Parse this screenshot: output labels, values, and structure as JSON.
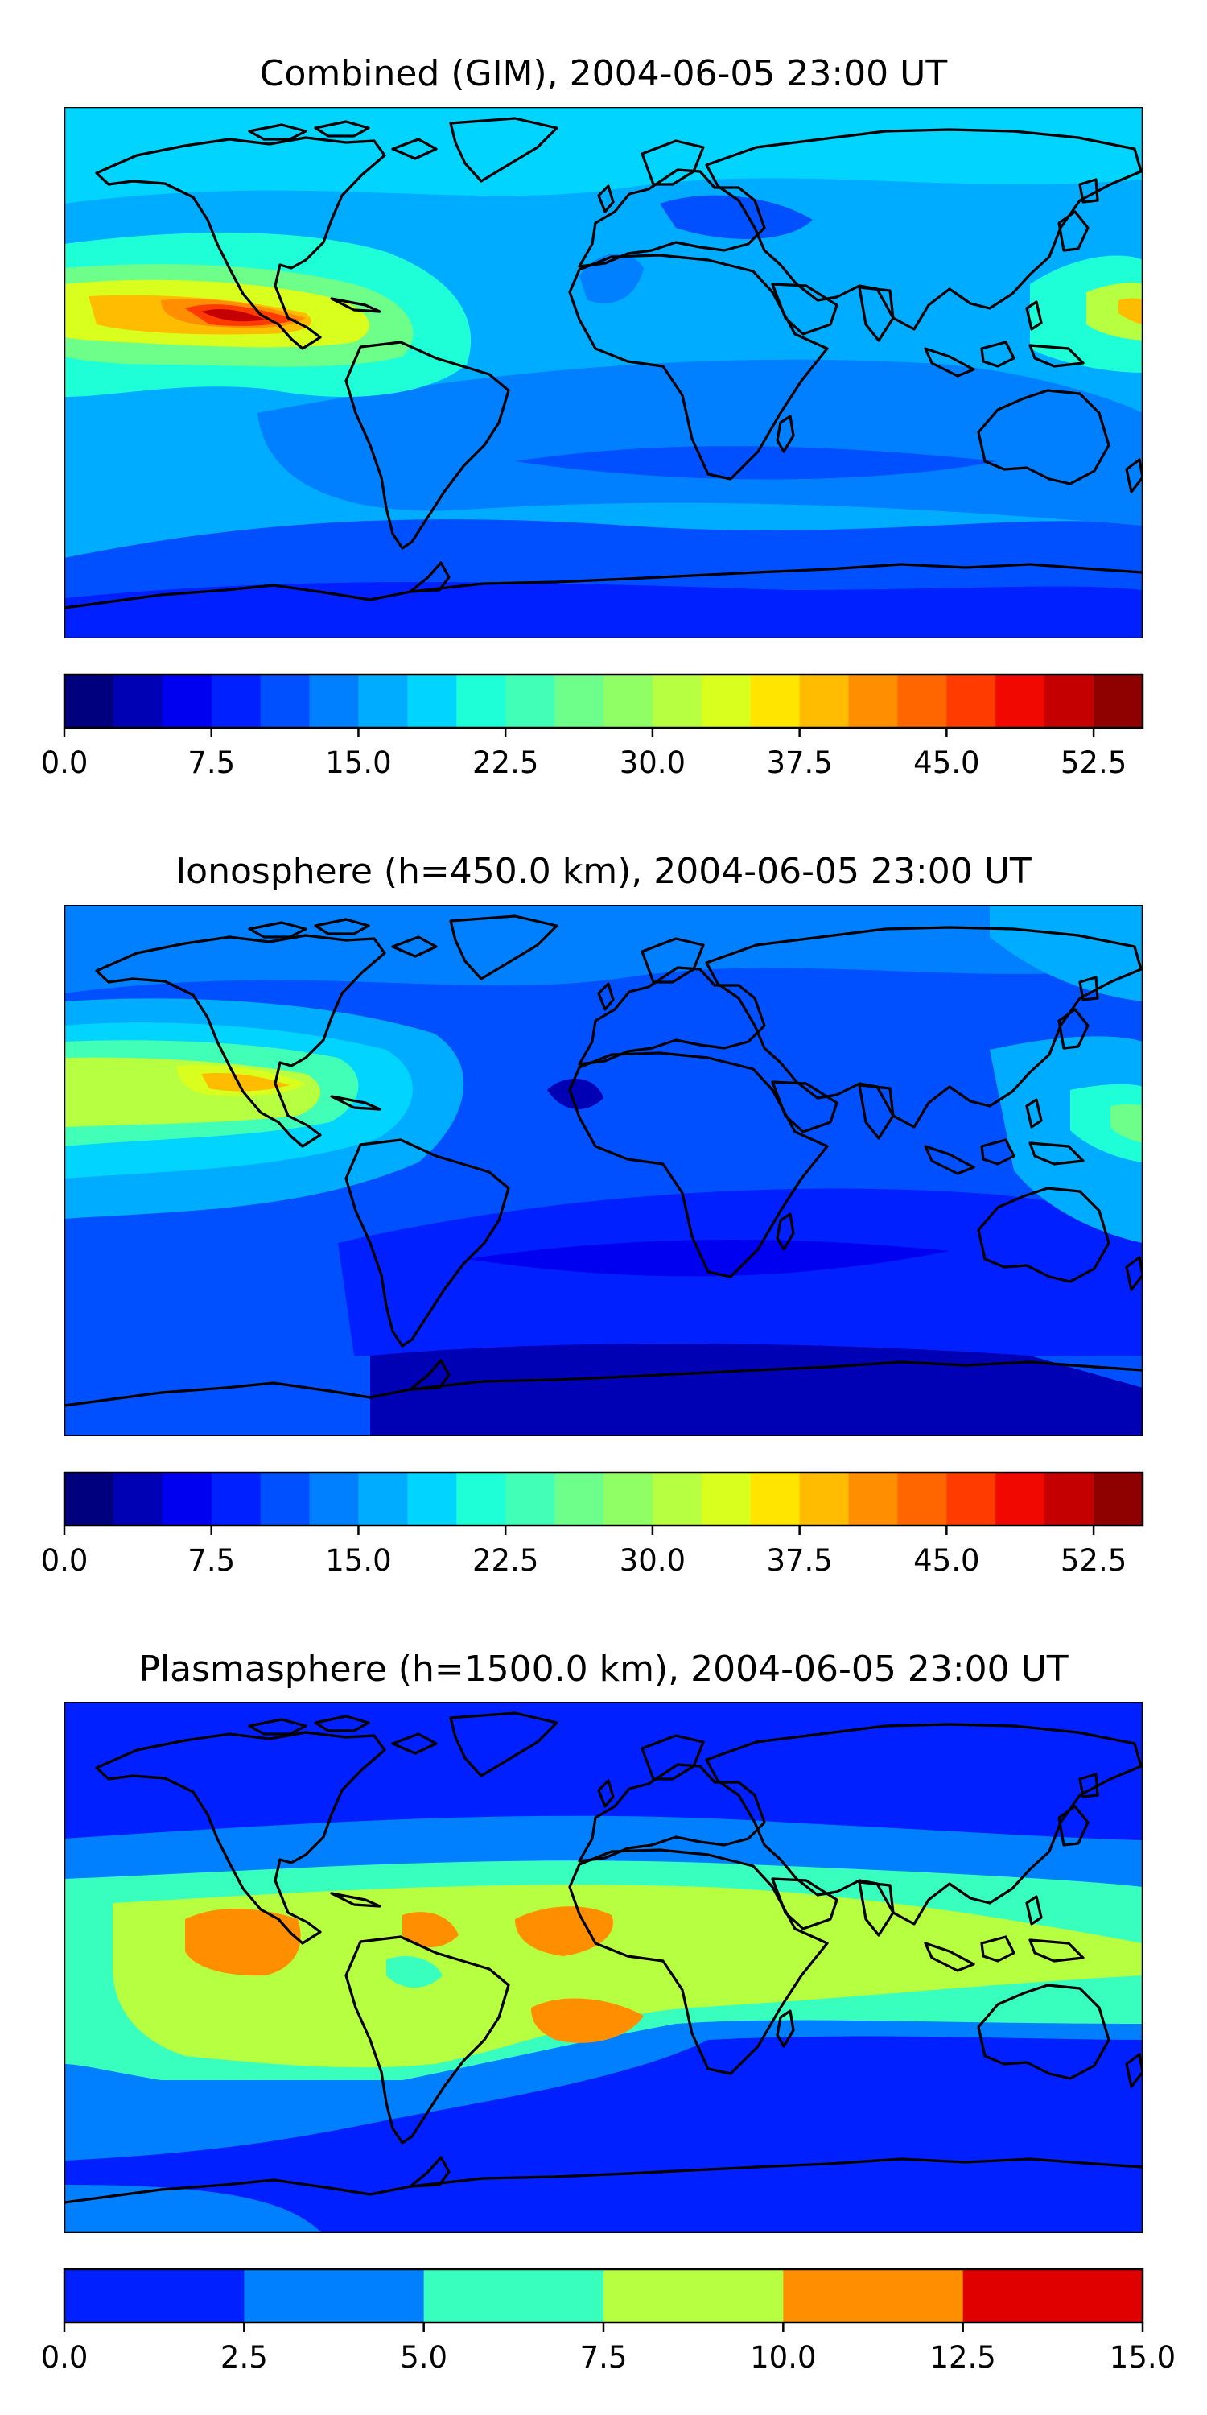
{
  "panels": [
    {
      "title": "Combined (GIM), 2004-06-05 23:00 UT",
      "colorbar": {
        "levels": [
          0.0,
          2.5,
          5.0,
          7.5,
          10.0,
          12.5,
          15.0,
          17.5,
          20.0,
          22.5,
          25.0,
          27.5,
          30.0,
          32.5,
          35.0,
          37.5,
          40.0,
          42.5,
          45.0,
          47.5,
          50.0,
          52.5,
          55.0
        ],
        "colors": [
          "#00007f",
          "#0000b5",
          "#0000f1",
          "#0020ff",
          "#0050ff",
          "#0080ff",
          "#00acff",
          "#00d4ff",
          "#1effd8",
          "#41ffb6",
          "#6dff8a",
          "#90ff66",
          "#b6ff41",
          "#d8ff1e",
          "#ffe500",
          "#ffbc00",
          "#ff8f00",
          "#ff6600",
          "#ff3b00",
          "#f10800",
          "#c40000",
          "#8f0000"
        ],
        "tick_labels": [
          "0.0",
          "7.5",
          "15.0",
          "22.5",
          "30.0",
          "37.5",
          "45.0",
          "52.5"
        ],
        "tick_values": [
          0.0,
          7.5,
          15.0,
          22.5,
          30.0,
          37.5,
          45.0,
          52.5
        ],
        "vmin": 0.0,
        "vmax": 55.0
      }
    },
    {
      "title": "Ionosphere  (h=450.0 km), 2004-06-05 23:00 UT",
      "colorbar": {
        "levels": [
          0.0,
          2.5,
          5.0,
          7.5,
          10.0,
          12.5,
          15.0,
          17.5,
          20.0,
          22.5,
          25.0,
          27.5,
          30.0,
          32.5,
          35.0,
          37.5,
          40.0,
          42.5,
          45.0,
          47.5,
          50.0,
          52.5,
          55.0
        ],
        "colors": [
          "#00007f",
          "#0000b5",
          "#0000f1",
          "#0020ff",
          "#0050ff",
          "#0080ff",
          "#00acff",
          "#00d4ff",
          "#1effd8",
          "#41ffb6",
          "#6dff8a",
          "#90ff66",
          "#b6ff41",
          "#d8ff1e",
          "#ffe500",
          "#ffbc00",
          "#ff8f00",
          "#ff6600",
          "#ff3b00",
          "#f10800",
          "#c40000",
          "#8f0000"
        ],
        "tick_labels": [
          "0.0",
          "7.5",
          "15.0",
          "22.5",
          "30.0",
          "37.5",
          "45.0",
          "52.5"
        ],
        "tick_values": [
          0.0,
          7.5,
          15.0,
          22.5,
          30.0,
          37.5,
          45.0,
          52.5
        ],
        "vmin": 0.0,
        "vmax": 55.0
      }
    },
    {
      "title": "Plasmasphere (h=1500.0 km), 2004-06-05 23:00 UT",
      "colorbar": {
        "levels": [
          0.0,
          2.5,
          5.0,
          7.5,
          10.0,
          12.5,
          15.0
        ],
        "colors": [
          "#0020ff",
          "#0080ff",
          "#38ffbe",
          "#b6ff41",
          "#ff8f00",
          "#e00000"
        ],
        "tick_labels": [
          "0.0",
          "2.5",
          "5.0",
          "7.5",
          "10.0",
          "12.5",
          "15.0"
        ],
        "tick_values": [
          0.0,
          2.5,
          5.0,
          7.5,
          10.0,
          12.5,
          15.0
        ],
        "vmin": 0.0,
        "vmax": 15.0
      }
    }
  ]
}
